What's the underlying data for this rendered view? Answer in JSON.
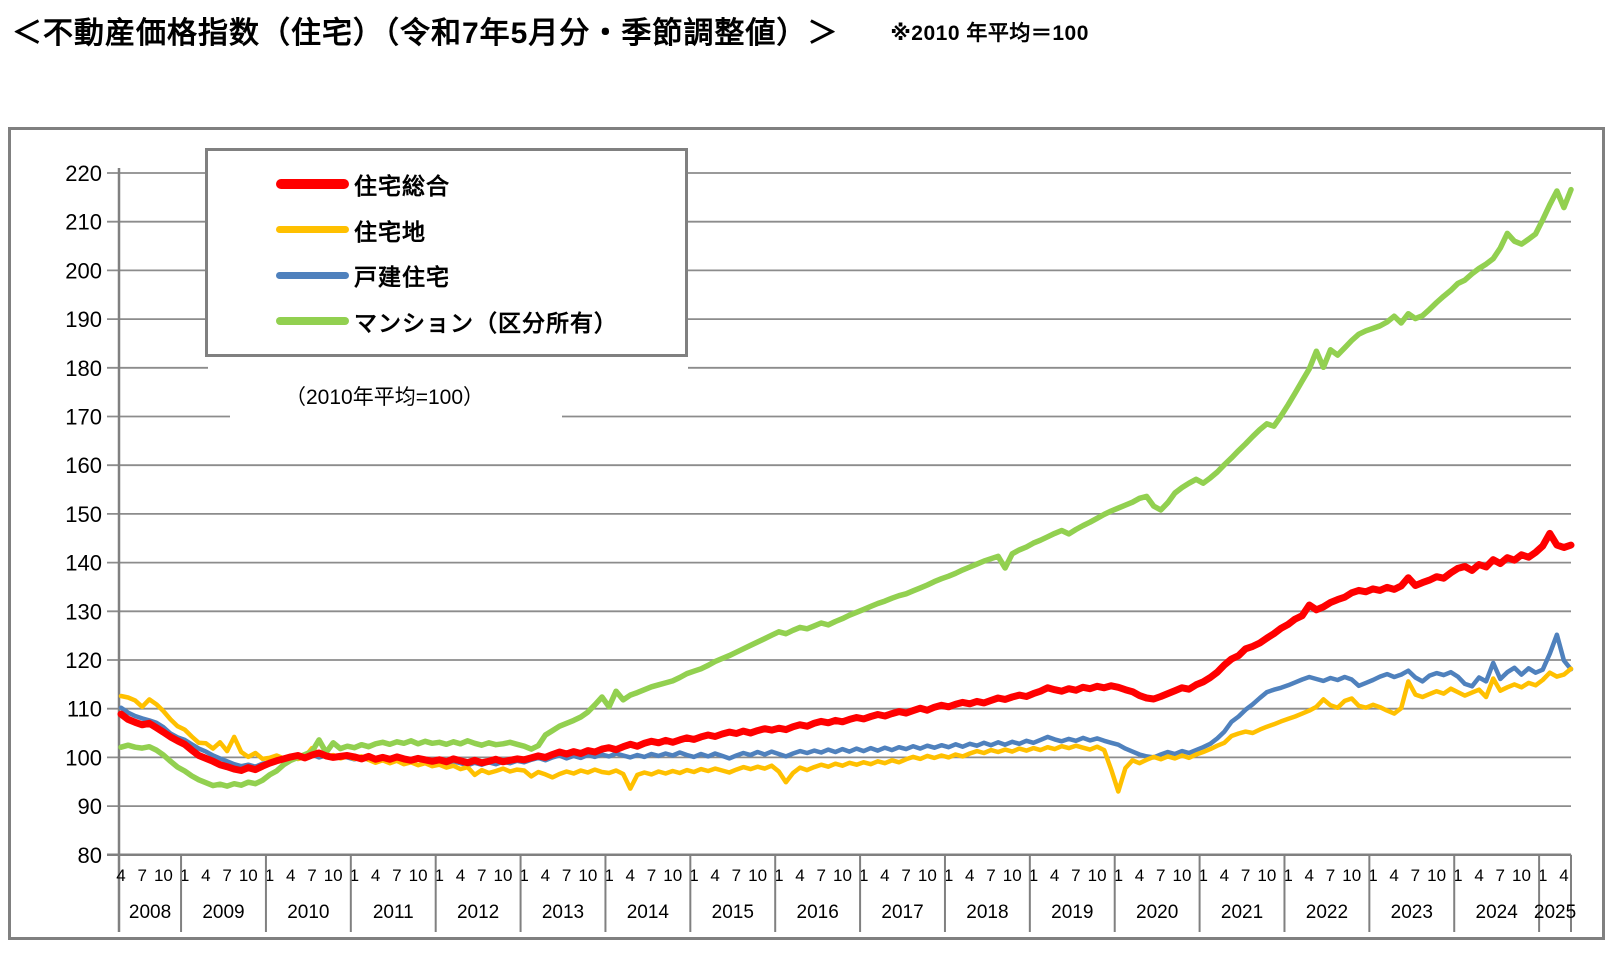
{
  "header": {
    "title": "＜不動産価格指数（住宅）（令和7年5月分・季節調整値）＞",
    "note": "※2010 年平均＝100"
  },
  "legend": {
    "items": [
      {
        "label": "住宅総合",
        "key": "residential-total",
        "color": "#FF0000",
        "thickness": 10
      },
      {
        "label": "住宅地",
        "key": "residential-land",
        "color": "#FFC000",
        "thickness": 7
      },
      {
        "label": "戸建住宅",
        "key": "detached-house",
        "color": "#4F81BD",
        "thickness": 7
      },
      {
        "label": "マンション（区分所有）",
        "key": "condominium",
        "color": "#92D050",
        "thickness": 8
      }
    ],
    "subnote": "（2010年平均=100）"
  },
  "chart_data": {
    "type": "line",
    "title": "不動産価格指数（住宅）（令和7年5月分・季節調整値）",
    "x_start": "2008-04",
    "x_end": "2025-05",
    "frequency": "monthly",
    "ylim": [
      80,
      220
    ],
    "y_ticks": [
      220,
      210,
      200,
      190,
      180,
      170,
      160,
      150,
      140,
      130,
      120,
      110,
      100,
      90,
      80
    ],
    "grid": "horizontal",
    "legend_position": "top-left",
    "x_tick_labels": [
      "4",
      "7",
      "10",
      "1",
      "4",
      "7",
      "10",
      "1",
      "4",
      "7",
      "10",
      "1",
      "4",
      "7",
      "10",
      "1",
      "4",
      "7",
      "10",
      "1",
      "4",
      "7",
      "10",
      "1",
      "4",
      "7",
      "10",
      "1",
      "4",
      "7",
      "10",
      "1",
      "4",
      "7",
      "10",
      "1",
      "4",
      "7",
      "10",
      "1",
      "4",
      "7",
      "10",
      "1",
      "4",
      "7",
      "10",
      "1",
      "4",
      "7",
      "10",
      "1",
      "4",
      "7",
      "10",
      "1",
      "4",
      "7",
      "10",
      "1",
      "4",
      "7",
      "10",
      "1",
      "4",
      "7",
      "10",
      "1",
      "4"
    ],
    "years": [
      "2008",
      "2009",
      "2010",
      "2011",
      "2012",
      "2013",
      "2014",
      "2015",
      "2016",
      "2017",
      "2018",
      "2019",
      "2020",
      "2021",
      "2022",
      "2023",
      "2024",
      "2025"
    ],
    "draw_order": [
      2,
      1,
      3,
      0
    ],
    "series": [
      {
        "name": "住宅総合",
        "key": "residential-total",
        "color": "#FF0000",
        "width": 7,
        "values": [
          108.9,
          107.8,
          107.2,
          106.7,
          107.0,
          106.1,
          105.2,
          104.2,
          103.4,
          102.7,
          101.5,
          100.4,
          99.8,
          99.2,
          98.5,
          98.1,
          97.6,
          97.3,
          97.9,
          97.5,
          98.2,
          98.8,
          99.3,
          99.7,
          100.1,
          100.4,
          99.9,
          100.5,
          100.9,
          100.3,
          100.0,
          100.2,
          100.4,
          100.1,
          99.7,
          100.2,
          99.6,
          100.0,
          99.6,
          100.1,
          99.7,
          99.4,
          99.8,
          99.5,
          99.2,
          99.5,
          99.1,
          99.7,
          99.3,
          98.9,
          99.4,
          98.9,
          99.2,
          99.6,
          99.1,
          99.4,
          99.7,
          99.5,
          99.9,
          100.3,
          100.0,
          100.6,
          101.1,
          100.7,
          101.2,
          100.8,
          101.4,
          101.1,
          101.7,
          102.0,
          101.6,
          102.2,
          102.7,
          102.3,
          102.9,
          103.3,
          103.0,
          103.5,
          103.1,
          103.6,
          104.0,
          103.7,
          104.2,
          104.6,
          104.3,
          104.8,
          105.2,
          104.9,
          105.4,
          105.0,
          105.5,
          105.9,
          105.6,
          106.0,
          105.7,
          106.3,
          106.7,
          106.4,
          107.0,
          107.4,
          107.1,
          107.6,
          107.3,
          107.8,
          108.2,
          107.9,
          108.4,
          108.8,
          108.5,
          109.0,
          109.4,
          109.1,
          109.6,
          110.1,
          109.7,
          110.3,
          110.7,
          110.4,
          110.9,
          111.3,
          111.0,
          111.5,
          111.2,
          111.7,
          112.2,
          111.9,
          112.4,
          112.8,
          112.5,
          113.1,
          113.6,
          114.3,
          113.9,
          113.6,
          114.1,
          113.8,
          114.4,
          114.1,
          114.6,
          114.3,
          114.7,
          114.4,
          113.9,
          113.5,
          112.7,
          112.2,
          112.0,
          112.5,
          113.1,
          113.7,
          114.3,
          114.0,
          114.9,
          115.5,
          116.4,
          117.5,
          119.0,
          120.2,
          120.9,
          122.3,
          122.8,
          123.5,
          124.5,
          125.4,
          126.5,
          127.3,
          128.4,
          129.1,
          131.3,
          130.3,
          130.9,
          131.8,
          132.4,
          132.9,
          133.8,
          134.3,
          134.0,
          134.6,
          134.3,
          134.9,
          134.5,
          135.2,
          136.9,
          135.3,
          135.9,
          136.4,
          137.1,
          136.8,
          137.9,
          138.8,
          139.2,
          138.4,
          139.6,
          139.1,
          140.6,
          139.8,
          141.0,
          140.5,
          141.6,
          141.1,
          142.1,
          143.4,
          146.0,
          143.6,
          143.1,
          143.6
        ]
      },
      {
        "name": "住宅地",
        "key": "residential-land",
        "color": "#FFC000",
        "width": 4.5,
        "values": [
          112.6,
          112.3,
          111.7,
          110.4,
          111.9,
          110.9,
          109.5,
          107.8,
          106.4,
          105.7,
          104.3,
          103.0,
          102.9,
          101.8,
          103.1,
          101.3,
          104.2,
          101.1,
          100.1,
          100.9,
          99.7,
          99.9,
          100.4,
          99.8,
          100.3,
          99.7,
          100.1,
          101.9,
          100.6,
          100.1,
          100.5,
          99.8,
          100.2,
          99.7,
          100.2,
          99.5,
          98.9,
          99.4,
          98.8,
          99.3,
          98.6,
          99.0,
          98.4,
          98.8,
          98.2,
          98.5,
          97.9,
          98.3,
          97.6,
          98.0,
          96.4,
          97.4,
          96.8,
          97.2,
          97.7,
          97.1,
          97.5,
          97.3,
          96.1,
          97.0,
          96.5,
          95.9,
          96.6,
          97.1,
          96.7,
          97.3,
          96.9,
          97.5,
          97.0,
          96.8,
          97.3,
          96.6,
          93.6,
          96.4,
          96.9,
          96.5,
          97.1,
          96.7,
          97.2,
          96.8,
          97.4,
          97.0,
          97.6,
          97.2,
          97.7,
          97.3,
          96.9,
          97.5,
          98.0,
          97.6,
          98.1,
          97.7,
          98.3,
          97.1,
          94.9,
          96.8,
          97.9,
          97.4,
          98.0,
          98.5,
          98.1,
          98.7,
          98.3,
          98.9,
          98.5,
          99.0,
          98.6,
          99.2,
          98.8,
          99.4,
          99.0,
          99.6,
          100.1,
          99.7,
          100.3,
          99.9,
          100.4,
          100.0,
          100.6,
          100.2,
          100.8,
          101.3,
          100.9,
          101.5,
          101.1,
          101.6,
          101.2,
          101.8,
          101.4,
          101.9,
          101.5,
          102.1,
          101.7,
          102.3,
          101.9,
          102.4,
          102.0,
          101.6,
          102.2,
          101.5,
          97.5,
          93.0,
          97.8,
          99.4,
          98.8,
          99.5,
          100.1,
          99.6,
          100.2,
          99.8,
          100.4,
          99.9,
          100.6,
          101.1,
          101.7,
          102.4,
          103.0,
          104.4,
          104.9,
          105.3,
          105.0,
          105.7,
          106.3,
          106.8,
          107.4,
          107.9,
          108.4,
          109.0,
          109.6,
          110.4,
          111.9,
          110.7,
          110.2,
          111.6,
          112.1,
          110.6,
          110.2,
          110.8,
          110.3,
          109.6,
          109.0,
          110.1,
          115.6,
          112.9,
          112.4,
          113.0,
          113.6,
          113.1,
          114.1,
          113.4,
          112.7,
          113.3,
          113.9,
          112.4,
          116.2,
          113.7,
          114.4,
          115.0,
          114.4,
          115.3,
          114.8,
          115.9,
          117.4,
          116.6,
          117.0,
          118.2
        ]
      },
      {
        "name": "戸建住宅",
        "key": "detached-house",
        "color": "#4F81BD",
        "width": 4.5,
        "values": [
          110.2,
          109.2,
          108.5,
          108.0,
          107.6,
          107.1,
          106.2,
          104.9,
          104.1,
          103.6,
          102.7,
          101.8,
          101.2,
          100.4,
          99.8,
          99.2,
          98.6,
          98.2,
          98.5,
          98.1,
          98.7,
          99.0,
          99.4,
          99.8,
          100.2,
          99.7,
          100.1,
          100.6,
          100.0,
          100.4,
          99.9,
          100.3,
          100.0,
          99.6,
          100.0,
          99.5,
          99.9,
          99.4,
          99.8,
          100.2,
          99.7,
          99.3,
          99.7,
          99.2,
          99.5,
          99.1,
          98.7,
          99.2,
          98.8,
          98.4,
          98.9,
          98.5,
          99.0,
          98.6,
          99.1,
          98.8,
          99.3,
          99.0,
          99.5,
          99.9,
          99.4,
          100.0,
          100.4,
          99.8,
          100.3,
          99.9,
          100.5,
          100.1,
          100.6,
          100.2,
          100.8,
          100.4,
          100.0,
          100.5,
          100.1,
          100.7,
          100.3,
          100.8,
          100.4,
          101.0,
          100.5,
          100.1,
          100.7,
          100.2,
          100.8,
          100.3,
          99.8,
          100.4,
          100.9,
          100.5,
          101.1,
          100.6,
          101.2,
          100.7,
          100.2,
          100.8,
          101.3,
          100.9,
          101.4,
          101.0,
          101.6,
          101.1,
          101.7,
          101.2,
          101.8,
          101.3,
          101.9,
          101.4,
          102.0,
          101.5,
          102.1,
          101.7,
          102.3,
          101.8,
          102.4,
          102.0,
          102.5,
          102.1,
          102.7,
          102.2,
          102.8,
          102.4,
          103.0,
          102.5,
          103.1,
          102.6,
          103.2,
          102.8,
          103.4,
          103.0,
          103.6,
          104.2,
          103.7,
          103.3,
          103.8,
          103.4,
          104.0,
          103.5,
          103.9,
          103.4,
          103.0,
          102.6,
          101.8,
          101.2,
          100.6,
          100.2,
          100.0,
          100.6,
          101.1,
          100.7,
          101.3,
          100.9,
          101.5,
          102.1,
          102.8,
          103.9,
          105.3,
          107.3,
          108.4,
          109.8,
          110.9,
          112.2,
          113.4,
          113.9,
          114.3,
          114.8,
          115.4,
          116.0,
          116.5,
          116.1,
          115.7,
          116.3,
          115.9,
          116.5,
          116.0,
          114.7,
          115.3,
          115.9,
          116.6,
          117.1,
          116.5,
          117.0,
          117.8,
          116.4,
          115.6,
          116.8,
          117.3,
          116.9,
          117.5,
          116.6,
          115.1,
          114.6,
          116.4,
          115.6,
          119.4,
          116.1,
          117.5,
          118.4,
          117.0,
          118.3,
          117.4,
          118.0,
          121.3,
          125.2,
          119.9,
          118.1
        ]
      },
      {
        "name": "マンション（区分所有）",
        "key": "condominium",
        "color": "#92D050",
        "width": 5.5,
        "values": [
          102.1,
          102.5,
          102.1,
          101.9,
          102.2,
          101.5,
          100.5,
          99.2,
          98.0,
          97.2,
          96.2,
          95.4,
          94.8,
          94.2,
          94.5,
          94.1,
          94.6,
          94.3,
          94.9,
          94.6,
          95.3,
          96.4,
          97.2,
          98.5,
          99.4,
          100.0,
          100.6,
          101.2,
          103.6,
          101.0,
          103.0,
          101.8,
          102.3,
          102.0,
          102.6,
          102.2,
          102.8,
          103.1,
          102.7,
          103.2,
          102.9,
          103.4,
          102.8,
          103.3,
          102.9,
          103.1,
          102.7,
          103.2,
          102.8,
          103.4,
          102.9,
          102.5,
          103.0,
          102.6,
          102.8,
          103.1,
          102.7,
          102.3,
          101.7,
          102.4,
          104.6,
          105.5,
          106.4,
          107.0,
          107.6,
          108.3,
          109.3,
          110.8,
          112.4,
          110.4,
          113.6,
          111.8,
          112.8,
          113.3,
          113.9,
          114.5,
          114.9,
          115.3,
          115.7,
          116.4,
          117.2,
          117.7,
          118.2,
          118.9,
          119.7,
          120.3,
          120.9,
          121.6,
          122.3,
          123.0,
          123.7,
          124.4,
          125.1,
          125.8,
          125.4,
          126.1,
          126.7,
          126.4,
          127.0,
          127.6,
          127.2,
          127.9,
          128.5,
          129.2,
          129.8,
          130.4,
          131.0,
          131.6,
          132.1,
          132.7,
          133.2,
          133.6,
          134.2,
          134.8,
          135.4,
          136.1,
          136.7,
          137.2,
          137.8,
          138.5,
          139.1,
          139.7,
          140.3,
          140.8,
          141.3,
          138.9,
          141.8,
          142.6,
          143.2,
          144.0,
          144.6,
          145.3,
          146.0,
          146.6,
          145.9,
          146.8,
          147.6,
          148.3,
          149.1,
          149.9,
          150.6,
          151.2,
          151.8,
          152.4,
          153.2,
          153.6,
          151.6,
          150.8,
          152.3,
          154.3,
          155.4,
          156.3,
          157.1,
          156.3,
          157.4,
          158.6,
          160.1,
          161.5,
          163.0,
          164.4,
          165.9,
          167.3,
          168.5,
          168.0,
          170.1,
          172.4,
          174.8,
          177.3,
          179.8,
          183.4,
          180.1,
          183.7,
          182.6,
          184.1,
          185.6,
          186.9,
          187.6,
          188.1,
          188.6,
          189.4,
          190.6,
          189.2,
          191.1,
          190.1,
          190.7,
          192.0,
          193.4,
          194.7,
          195.9,
          197.3,
          198.0,
          199.3,
          200.4,
          201.3,
          202.4,
          204.6,
          207.6,
          206.0,
          205.4,
          206.4,
          207.5,
          210.4,
          213.5,
          216.3,
          212.9,
          216.6
        ]
      }
    ]
  }
}
